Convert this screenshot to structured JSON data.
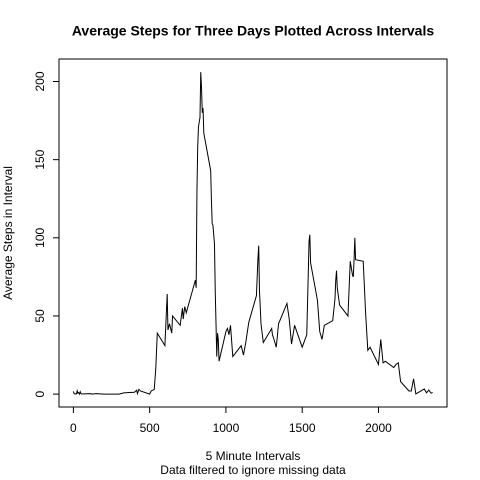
{
  "chart_data": {
    "type": "line",
    "title": "Average Steps for Three Days Plotted Across Intervals",
    "x_label": "5 Minute Intervals",
    "subtitle": "Data filtered to ignore missing data",
    "y_label": "Average Steps in Interval",
    "color": "#000000",
    "x": [
      0,
      5,
      10,
      15,
      20,
      25,
      30,
      35,
      40,
      45,
      50,
      55,
      100,
      110,
      115,
      120,
      150,
      200,
      230,
      300,
      330,
      400,
      415,
      420,
      430,
      440,
      500,
      510,
      530,
      540,
      550,
      600,
      610,
      615,
      620,
      630,
      645,
      650,
      700,
      715,
      720,
      730,
      740,
      800,
      805,
      810,
      815,
      820,
      830,
      835,
      840,
      845,
      850,
      855,
      900,
      905,
      910,
      915,
      925,
      930,
      935,
      940,
      945,
      950,
      955,
      1000,
      1010,
      1020,
      1030,
      1045,
      1100,
      1115,
      1130,
      1150,
      1200,
      1210,
      1215,
      1220,
      1230,
      1245,
      1300,
      1305,
      1315,
      1330,
      1345,
      1400,
      1415,
      1430,
      1450,
      1500,
      1530,
      1545,
      1550,
      1555,
      1600,
      1615,
      1630,
      1645,
      1700,
      1715,
      1720,
      1725,
      1730,
      1745,
      1800,
      1815,
      1830,
      1835,
      1840,
      1845,
      1850,
      1900,
      1915,
      1930,
      1945,
      2000,
      2015,
      2030,
      2045,
      2100,
      2115,
      2130,
      2145,
      2200,
      2215,
      2230,
      2245,
      2300,
      2315,
      2330,
      2345,
      2355
    ],
    "values": [
      1.7,
      0.3,
      0.1,
      0.2,
      0.1,
      2.1,
      0.5,
      0.9,
      0,
      1.5,
      0.3,
      0.1,
      0.3,
      0.2,
      0.3,
      0,
      0.3,
      0,
      0,
      0,
      0.8,
      1.2,
      2.5,
      0.3,
      3,
      2,
      0,
      2,
      3,
      16,
      39,
      31,
      53,
      64,
      41,
      45,
      39,
      50,
      44,
      55,
      48,
      56,
      52,
      73,
      68,
      129,
      158,
      171,
      177,
      206,
      196,
      180,
      183,
      167,
      143,
      124,
      109,
      108,
      96,
      66,
      45,
      24,
      39,
      35,
      21,
      40,
      42,
      38,
      44,
      24,
      31,
      25,
      33,
      46,
      63,
      87,
      95,
      66,
      45,
      33,
      42,
      38,
      35,
      30,
      45,
      58,
      48,
      32,
      44,
      30,
      38,
      98,
      102,
      84,
      60,
      40,
      35,
      44,
      47,
      61,
      73,
      79,
      68,
      57,
      50,
      85,
      76,
      75,
      86,
      100,
      86,
      85,
      53,
      28,
      30,
      19,
      35,
      20,
      21,
      17,
      19,
      20,
      8,
      2,
      2,
      9.8,
      0.1,
      3.3,
      0.8,
      2.6,
      0.6,
      1.1
    ],
    "xlim": [
      -94.2,
      2449.2
    ],
    "ylim": [
      -8.25,
      214.4
    ],
    "xticks": [
      0,
      500,
      1000,
      1500,
      2000
    ],
    "yticks": [
      0,
      50,
      100,
      150,
      200
    ]
  }
}
